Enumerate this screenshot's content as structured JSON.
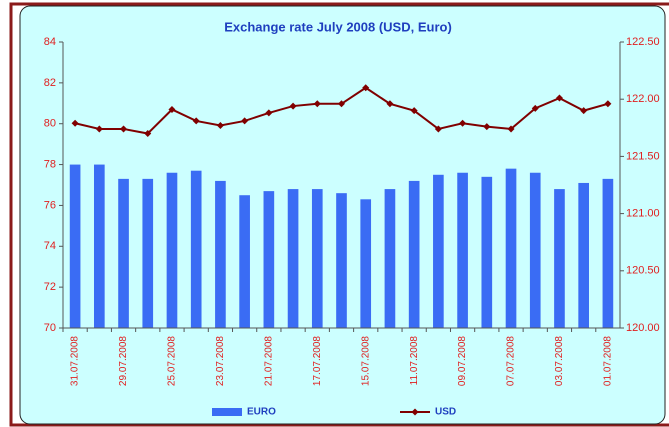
{
  "chart_data": {
    "type": "bar_line",
    "title": "Exchange rate July 2008 (USD, Euro)",
    "categories": [
      "31.07.2008",
      null,
      "29.07.2008",
      null,
      "25.07.2008",
      null,
      "23.07.2008",
      null,
      "21.07.2008",
      null,
      "17.07.2008",
      null,
      "15.07.2008",
      null,
      "11.07.2008",
      null,
      "09.07.2008",
      null,
      "07.07.2008",
      null,
      "03.07.2008",
      null,
      "01.07.2008"
    ],
    "series": [
      {
        "name": "EURO",
        "type": "bar",
        "color": "#3a6cf4",
        "values": [
          78.0,
          78.0,
          77.3,
          77.3,
          77.6,
          77.7,
          77.2,
          76.5,
          76.7,
          76.8,
          76.8,
          76.6,
          76.3,
          76.8,
          77.2,
          77.5,
          77.6,
          77.4,
          77.8,
          77.6,
          76.8,
          77.1,
          77.3
        ]
      },
      {
        "name": "USD",
        "type": "line",
        "axis": "y2",
        "color": "#800000",
        "values": [
          121.79,
          121.74,
          121.74,
          121.7,
          121.91,
          121.81,
          121.77,
          121.81,
          121.88,
          121.94,
          121.96,
          121.96,
          122.1,
          121.96,
          121.9,
          121.74,
          121.79,
          121.76,
          121.74,
          121.92,
          122.01,
          121.9,
          121.96
        ]
      }
    ],
    "ylim": [
      70,
      84
    ],
    "yticks": [
      70,
      72,
      74,
      76,
      78,
      80,
      82,
      84
    ],
    "y2lim": [
      120,
      122.5
    ],
    "y2ticks": [
      {
        "value": 120,
        "label": "120.00"
      },
      {
        "value": 120.5,
        "label": "120.50"
      },
      {
        "value": 121,
        "label": "121.00"
      },
      {
        "value": 121.5,
        "label": "121.50"
      },
      {
        "value": 122,
        "label": "122.00"
      },
      {
        "value": 122.5,
        "label": "122.50"
      }
    ]
  }
}
